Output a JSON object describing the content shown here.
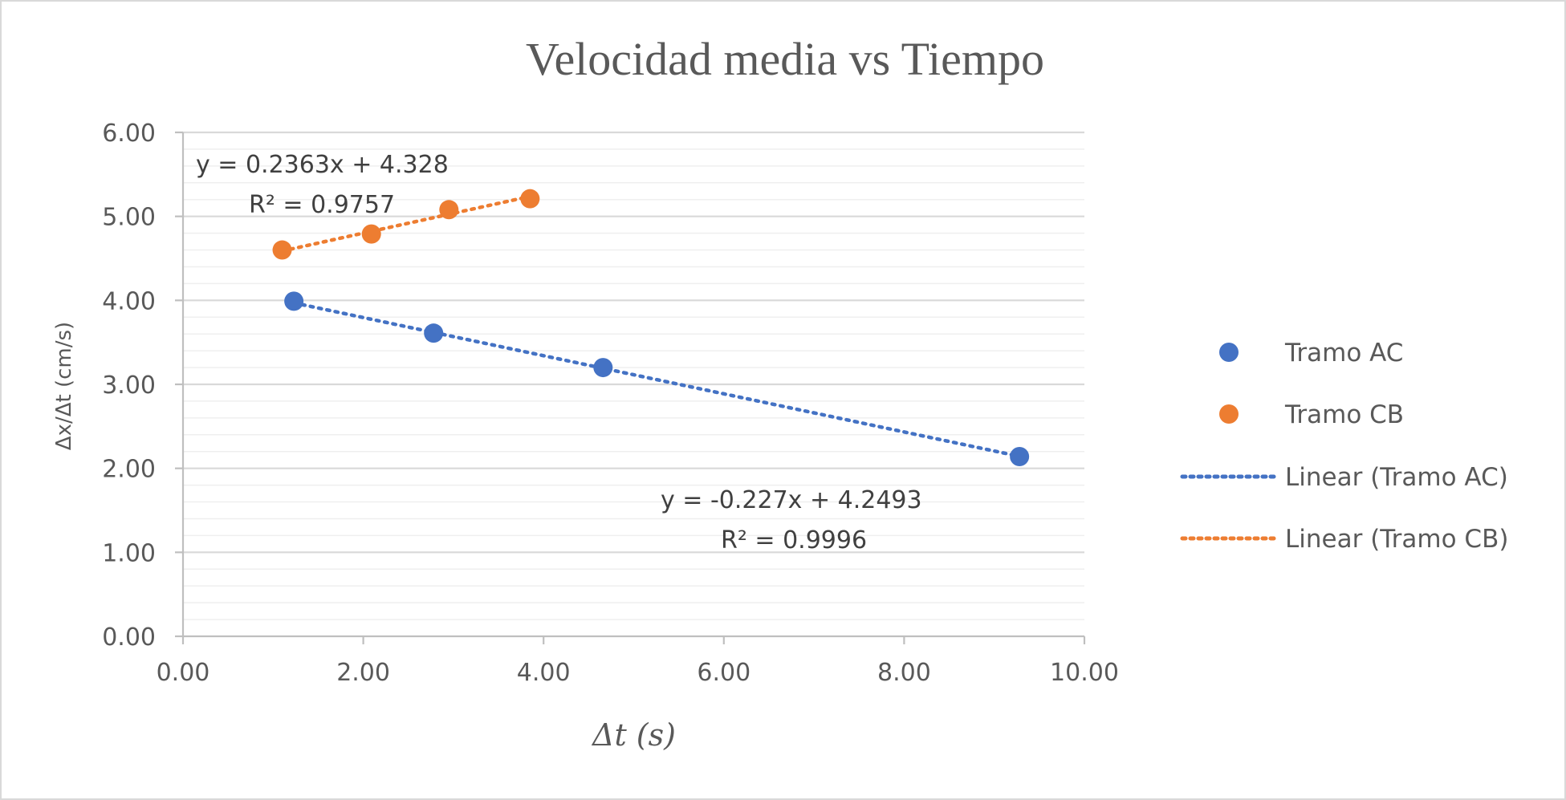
{
  "chart_data": {
    "type": "scatter",
    "title": "Velocidad media vs Tiempo",
    "xlabel": "Δt (s)",
    "ylabel": "Δx/Δt (cm/s)",
    "xlim": [
      0,
      10
    ],
    "ylim": [
      0,
      6
    ],
    "x_ticks": [
      "0.00",
      "2.00",
      "4.00",
      "6.00",
      "8.00",
      "10.00"
    ],
    "y_ticks": [
      "0.00",
      "1.00",
      "2.00",
      "3.00",
      "4.00",
      "5.00",
      "6.00"
    ],
    "grid": true,
    "legend_position": "right",
    "series": [
      {
        "name": "Tramo AC",
        "color": "#4472c4",
        "x": [
          1.23,
          2.78,
          4.66,
          9.28
        ],
        "y": [
          3.99,
          3.61,
          3.2,
          2.14
        ]
      },
      {
        "name": "Tramo CB",
        "color": "#ed7d31",
        "x": [
          1.1,
          2.09,
          2.95,
          3.85
        ],
        "y": [
          4.6,
          4.79,
          5.08,
          5.21
        ]
      }
    ],
    "trendlines": [
      {
        "name": "Linear (Tramo AC)",
        "color": "#4472c4",
        "slope": -0.227,
        "intercept": 4.2493,
        "x_range": [
          1.23,
          9.28
        ],
        "equation": "y = -0.227x + 4.2493",
        "r2": "R² = 0.9996"
      },
      {
        "name": "Linear (Tramo CB)",
        "color": "#ed7d31",
        "slope": 0.2363,
        "intercept": 4.328,
        "x_range": [
          1.1,
          3.85
        ],
        "equation": "y = 0.2363x + 4.328",
        "r2": "R² = 0.9757"
      }
    ]
  }
}
